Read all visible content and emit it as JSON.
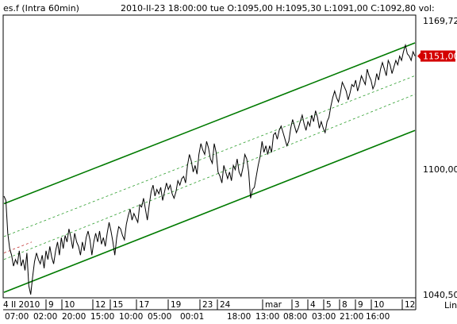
{
  "header": {
    "symbol": "es.f (Intra 60min)",
    "info": "2010-II-23   18:00:00 tue   O:1095,00 H:1095,30 L:1091,00 C:1092,80 vol:"
  },
  "y_axis": {
    "top_label": "1169,72",
    "mid_label": "1100,00",
    "bottom_label": "1040,50",
    "scale": "Lin",
    "current_price_label": "1151,00"
  },
  "colors": {
    "price": "#000000",
    "channel": "#007a00",
    "midline": "#2e9e2e",
    "price_tag": "#d40000",
    "frame": "#000000"
  },
  "chart_data": {
    "type": "line",
    "symbol": "es.f",
    "interval": "60min",
    "ylim": [
      1040.5,
      1169.72
    ],
    "y_scale": "linear",
    "current_price": 1151.0,
    "x_ticks_top": [
      "4 II 2010",
      "9",
      "10",
      "12",
      "15",
      "17",
      "19",
      "23",
      "24",
      "mar",
      "3",
      "4",
      "5",
      "8",
      "9",
      "10",
      "12"
    ],
    "x_ticks_bottom": [
      "07:00",
      "02:00",
      "20:00",
      "15:00",
      "10:00",
      "05:00",
      "00:01",
      "18:00",
      "13:00",
      "08:00",
      "03:00",
      "21:00",
      "16:00"
    ],
    "series": [
      {
        "values": [
          1087,
          1085,
          1070,
          1063,
          1060,
          1055,
          1058,
          1056,
          1062,
          1055,
          1058,
          1053,
          1061,
          1046,
          1042,
          1050,
          1057,
          1061,
          1058,
          1056,
          1060,
          1054,
          1062,
          1058,
          1064,
          1059,
          1056,
          1062,
          1066,
          1060,
          1068,
          1063,
          1069,
          1066,
          1072,
          1068,
          1063,
          1070,
          1066,
          1064,
          1060,
          1066,
          1062,
          1068,
          1071,
          1067,
          1060,
          1066,
          1070,
          1066,
          1071,
          1065,
          1068,
          1064,
          1070,
          1075,
          1071,
          1066,
          1060,
          1068,
          1073,
          1072,
          1069,
          1067,
          1074,
          1078,
          1081,
          1076,
          1079,
          1077,
          1075,
          1083,
          1082,
          1086,
          1081,
          1076,
          1083,
          1089,
          1092,
          1087,
          1090,
          1088,
          1091,
          1085,
          1089,
          1093,
          1090,
          1092,
          1088,
          1086,
          1089,
          1094,
          1092,
          1095,
          1096,
          1093,
          1101,
          1106,
          1103,
          1098,
          1101,
          1097,
          1106,
          1111,
          1108,
          1106,
          1112,
          1109,
          1104,
          1102,
          1111,
          1107,
          1098,
          1096,
          1093,
          1101,
          1098,
          1095,
          1098,
          1094,
          1101,
          1099,
          1104,
          1098,
          1096,
          1100,
          1106,
          1104,
          1098,
          1086,
          1090,
          1091,
          1096,
          1101,
          1105,
          1112,
          1107,
          1110,
          1106,
          1110,
          1107,
          1115,
          1116,
          1113,
          1117,
          1119,
          1116,
          1113,
          1110,
          1112,
          1118,
          1122,
          1119,
          1116,
          1118,
          1121,
          1124,
          1120,
          1117,
          1121,
          1119,
          1124,
          1121,
          1126,
          1123,
          1118,
          1121,
          1118,
          1116,
          1121,
          1123,
          1128,
          1132,
          1135,
          1132,
          1130,
          1134,
          1139,
          1137,
          1135,
          1131,
          1134,
          1138,
          1137,
          1140,
          1135,
          1138,
          1142,
          1140,
          1138,
          1145,
          1142,
          1140,
          1136,
          1138,
          1143,
          1140,
          1145,
          1148,
          1145,
          1142,
          1149,
          1147,
          1143,
          1146,
          1149,
          1147,
          1151,
          1149,
          1153,
          1156,
          1152,
          1151,
          1149,
          1153,
          1151
        ]
      }
    ],
    "channel": {
      "upper": [
        1083.5,
        1157.0
      ],
      "lower": [
        1043.0,
        1117.0
      ],
      "mid_upper": [
        1068.5,
        1142.0
      ],
      "mid_lower": [
        1058.0,
        1133.5
      ],
      "mid_red": [
        1061.0,
        1066.0
      ]
    }
  }
}
